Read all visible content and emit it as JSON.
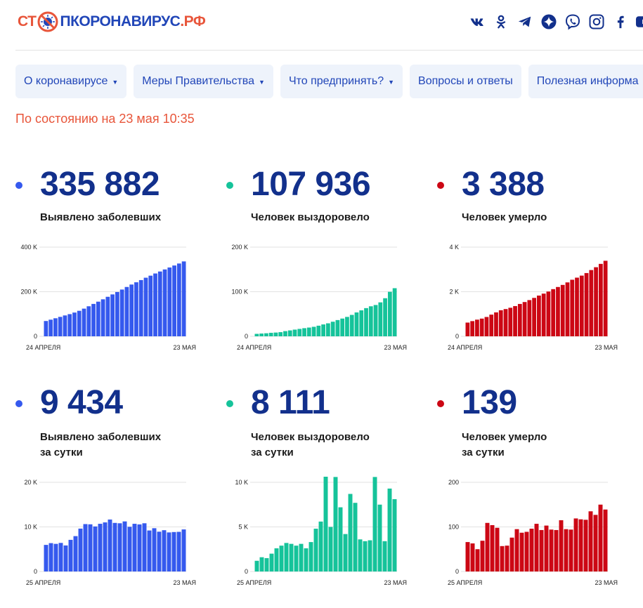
{
  "logo": {
    "part1": "СТ",
    "part2": "ПКОРОНАВИРУС",
    "part3": ".РФ"
  },
  "socials": [
    "vk-icon",
    "odnoklassniki-icon",
    "telegram-icon",
    "yandex-zen-icon",
    "viber-icon",
    "instagram-icon",
    "facebook-icon",
    "youtube-icon"
  ],
  "menu": [
    {
      "label": "О коронавирусе",
      "caret": "▼"
    },
    {
      "label": "Меры Правительства",
      "caret": "▼"
    },
    {
      "label": "Что предпринять?",
      "caret": "▼"
    },
    {
      "label": "Вопросы и ответы",
      "caret": ""
    },
    {
      "label": "Полезная информа",
      "caret": ""
    }
  ],
  "status": "По состоянию на 23 мая 10:35",
  "colors": {
    "blue": "#3559ee",
    "green": "#15c39a",
    "red": "#cc0714",
    "brand_blue": "#2146b8",
    "orange": "#e8553a"
  },
  "stats": [
    {
      "value": "335 882",
      "label1": "Выявлено заболевших",
      "label2": "",
      "color": "#3559ee"
    },
    {
      "value": "107 936",
      "label1": "Человек выздоровело",
      "label2": "",
      "color": "#15c39a"
    },
    {
      "value": "3 388",
      "label1": "Человек умерло",
      "label2": "",
      "color": "#cc0714"
    },
    {
      "value": "9 434",
      "label1": "Выявлено заболевших",
      "label2": "за сутки",
      "color": "#3559ee"
    },
    {
      "value": "8 111",
      "label1": "Человек выздоровело",
      "label2": "за сутки",
      "color": "#15c39a"
    },
    {
      "value": "139",
      "label1": "Человек умерло",
      "label2": "за сутки",
      "color": "#cc0714"
    }
  ],
  "chart_data": [
    {
      "type": "bar",
      "color": "#3559ee",
      "ylim": [
        0,
        400000
      ],
      "yticks": [
        {
          "v": 0,
          "label": "0"
        },
        {
          "v": 200000,
          "label": "200 K"
        },
        {
          "v": 400000,
          "label": "400 K"
        }
      ],
      "xlabel_start": "24 АПРЕЛЯ",
      "xlabel_end": "23 МАЯ",
      "values": [
        68600,
        74600,
        80900,
        87100,
        93600,
        99400,
        106500,
        114400,
        124100,
        134700,
        145300,
        155400,
        165900,
        177200,
        187900,
        198700,
        209700,
        221300,
        232200,
        242300,
        252200,
        262800,
        272000,
        281800,
        290700,
        299900,
        308700,
        317600,
        326500,
        335900
      ]
    },
    {
      "type": "bar",
      "color": "#15c39a",
      "ylim": [
        0,
        200000
      ],
      "yticks": [
        {
          "v": 0,
          "label": "0"
        },
        {
          "v": 100000,
          "label": "100 K"
        },
        {
          "v": 200000,
          "label": "200 K"
        }
      ],
      "xlabel_start": "24 АПРЕЛЯ",
      "xlabel_end": "23 МАЯ",
      "values": [
        5500,
        6200,
        6800,
        7800,
        8400,
        9300,
        11600,
        13200,
        15000,
        16600,
        18200,
        19600,
        21300,
        23800,
        26600,
        29100,
        32700,
        36400,
        39800,
        43500,
        48000,
        53500,
        58200,
        63200,
        67300,
        70200,
        76100,
        85400,
        99800,
        107900
      ]
    },
    {
      "type": "bar",
      "color": "#cc0714",
      "ylim": [
        0,
        4000
      ],
      "yticks": [
        {
          "v": 0,
          "label": "0"
        },
        {
          "v": 2000,
          "label": "2 K"
        },
        {
          "v": 4000,
          "label": "4 K"
        }
      ],
      "xlabel_start": "24 АПРЕЛЯ",
      "xlabel_end": "23 МАЯ",
      "values": [
        615,
        681,
        747,
        794,
        867,
        972,
        1073,
        1169,
        1222,
        1280,
        1356,
        1451,
        1537,
        1625,
        1723,
        1827,
        1915,
        2009,
        2116,
        2212,
        2305,
        2418,
        2537,
        2631,
        2722,
        2837,
        2972,
        3099,
        3249,
        3388
      ]
    },
    {
      "type": "bar",
      "color": "#3559ee",
      "ylim": [
        0,
        20000
      ],
      "yticks": [
        {
          "v": 0,
          "label": "0"
        },
        {
          "v": 10000,
          "label": "10 K"
        },
        {
          "v": 20000,
          "label": "20 K"
        }
      ],
      "xlabel_start": "25 АПРЕЛЯ",
      "xlabel_end": "23 МАЯ",
      "values": [
        5966,
        6361,
        6198,
        6411,
        5841,
        7099,
        7933,
        9623,
        10633,
        10581,
        10102,
        10699,
        11012,
        11656,
        10899,
        10817,
        11231,
        10028,
        10699,
        10559,
        10817,
        9200,
        9709,
        8926,
        9263,
        8764,
        8849,
        8894,
        9434
      ]
    },
    {
      "type": "bar",
      "color": "#15c39a",
      "ylim": [
        0,
        10000
      ],
      "yticks": [
        {
          "v": 0,
          "label": "0"
        },
        {
          "v": 5000,
          "label": "5 K"
        },
        {
          "v": 10000,
          "label": "10 K"
        }
      ],
      "xlabel_start": "25 АПРЕЛЯ",
      "xlabel_end": "23 МАЯ",
      "values": [
        1200,
        1600,
        1500,
        2000,
        2600,
        2900,
        3200,
        3100,
        2900,
        3100,
        2600,
        3300,
        4800,
        5600,
        10700,
        5000,
        10600,
        7200,
        4200,
        8700,
        7700,
        3600,
        3400,
        3500,
        10600,
        7500,
        3400,
        9300,
        8111
      ]
    },
    {
      "type": "bar",
      "color": "#cc0714",
      "ylim": [
        0,
        200
      ],
      "yticks": [
        {
          "v": 0,
          "label": "0"
        },
        {
          "v": 100,
          "label": "100"
        },
        {
          "v": 200,
          "label": "200"
        }
      ],
      "xlabel_start": "25 АПРЕЛЯ",
      "xlabel_end": "23 МАЯ",
      "values": [
        66,
        63,
        50,
        69,
        109,
        104,
        98,
        57,
        58,
        76,
        95,
        87,
        89,
        96,
        107,
        93,
        103,
        94,
        93,
        115,
        95,
        94,
        119,
        117,
        116,
        135,
        127,
        150,
        139
      ]
    }
  ]
}
